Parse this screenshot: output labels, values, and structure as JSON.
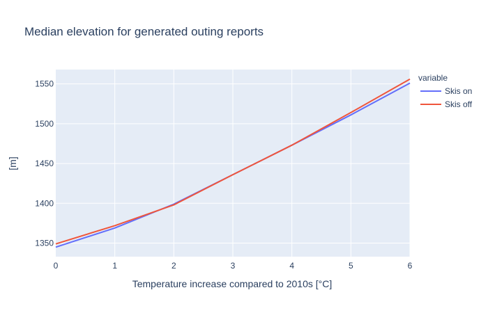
{
  "chart_data": {
    "type": "line",
    "title": "Median elevation for generated outing reports",
    "xlabel": "Temperature increase compared to 2010s [°C]",
    "ylabel": "[m]",
    "xlim": [
      0,
      6
    ],
    "ylim": [
      1333,
      1568
    ],
    "x_ticks": [
      0,
      1,
      2,
      3,
      4,
      5,
      6
    ],
    "y_ticks": [
      1350,
      1400,
      1450,
      1500,
      1550
    ],
    "grid": true,
    "legend": {
      "title": "variable",
      "position": "right"
    },
    "x": [
      0,
      1,
      2,
      3,
      4,
      5,
      6
    ],
    "series": [
      {
        "name": "Skis on",
        "color": "#636efa",
        "values": [
          1345,
          1369,
          1399,
          1436,
          1473,
          1511,
          1551
        ]
      },
      {
        "name": "Skis off",
        "color": "#ef553b",
        "values": [
          1349,
          1372,
          1398,
          1436,
          1473,
          1514,
          1556
        ]
      }
    ]
  },
  "colors": {
    "plot_background": "#e5ecf6",
    "grid": "#ffffff",
    "text": "#2a3f5f"
  }
}
